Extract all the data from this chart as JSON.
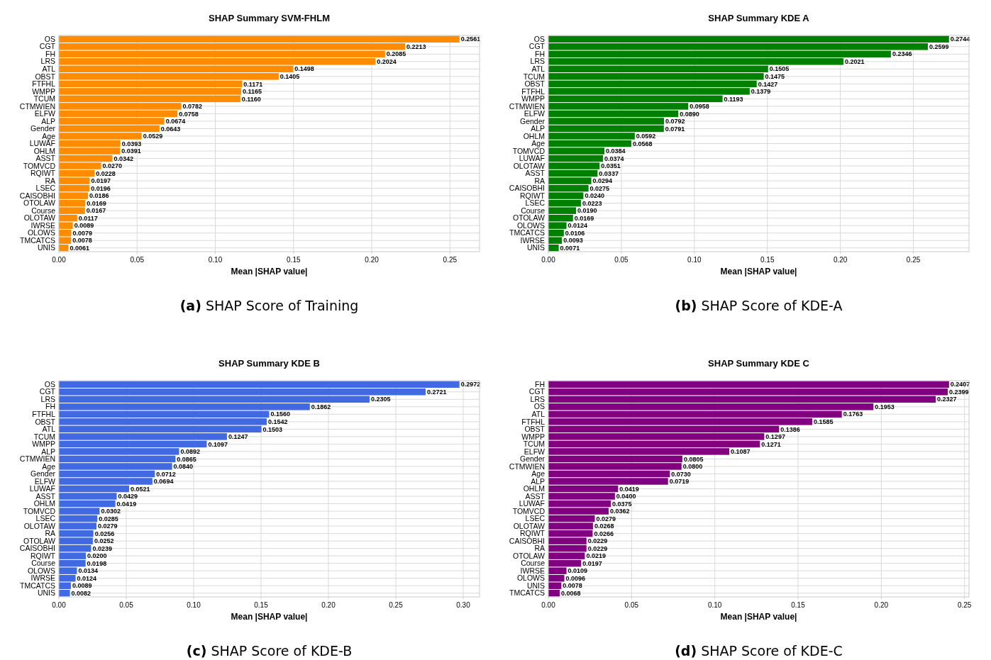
{
  "chart_data": [
    {
      "type": "bar",
      "orientation": "horizontal",
      "title": "SHAP Summary SVM-FHLM",
      "xlabel": "Mean |SHAP value|",
      "annotations": [
        "(a) SHAP Score of Training"
      ],
      "grid": true,
      "color": "#ff8c00",
      "categories": [
        "OS",
        "CGT",
        "FH",
        "LRS",
        "ATL",
        "OBST",
        "FTFHL",
        "WMPP",
        "TCUM",
        "CTMWIEN",
        "ELFW",
        "ALP",
        "Gender",
        "Age",
        "LUWAF",
        "OHLM",
        "ASST",
        "TOMVCD",
        "RQIWT",
        "RA",
        "LSEC",
        "CAISOBHI",
        "OTOLAW",
        "Course",
        "OLOTAW",
        "IWRSE",
        "OLOWS",
        "TMCATCS",
        "UNIS"
      ],
      "values": [
        0.2561,
        0.2213,
        0.2085,
        0.2024,
        0.1498,
        0.1405,
        0.1171,
        0.1165,
        0.116,
        0.0782,
        0.0758,
        0.0674,
        0.0643,
        0.0529,
        0.0393,
        0.0391,
        0.0342,
        0.027,
        0.0228,
        0.0197,
        0.0196,
        0.0186,
        0.0169,
        0.0167,
        0.0117,
        0.0089,
        0.0079,
        0.0078,
        0.0061
      ],
      "value_labels": [
        "0.2561",
        "0.2213",
        "0.2085",
        "0.2024",
        "0.1498",
        "0.1405",
        "0.1171",
        "0.1165",
        "0.1160",
        "0.0782",
        "0.0758",
        "0.0674",
        "0.0643",
        "0.0529",
        "0.0393",
        "0.0391",
        "0.0342",
        "0.0270",
        "0.0228",
        "0.0197",
        "0.0196",
        "0.0186",
        "0.0169",
        "0.0167",
        "0.0117",
        "0.0089",
        "0.0079",
        "0.0078",
        "0.0061"
      ],
      "xlim": [
        0,
        0.2689
      ],
      "xticks": [
        {
          "value": 0,
          "label": "0.00"
        },
        0.05,
        {
          "value": 0.1,
          "label": "0.10"
        },
        0.15,
        {
          "value": 0.2,
          "label": "0.20"
        },
        0.25
      ]
    },
    {
      "type": "bar",
      "orientation": "horizontal",
      "title": "SHAP Summary KDE A",
      "xlabel": "Mean |SHAP value|",
      "annotations": [
        "(b) SHAP Score of KDE-A"
      ],
      "grid": true,
      "color": "#008000",
      "categories": [
        "OS",
        "CGT",
        "FH",
        "LRS",
        "ATL",
        "TCUM",
        "OBST",
        "FTFHL",
        "WMPP",
        "CTMWIEN",
        "ELFW",
        "Gender",
        "ALP",
        "OHLM",
        "Age",
        "TOMVCD",
        "LUWAF",
        "OLOTAW",
        "ASST",
        "RA",
        "CAISOBHI",
        "RQIWT",
        "LSEC",
        "Course",
        "OTOLAW",
        "OLOWS",
        "TMCATCS",
        "IWRSE",
        "UNIS"
      ],
      "values": [
        0.2744,
        0.2599,
        0.2346,
        0.2021,
        0.1505,
        0.1475,
        0.1427,
        0.1379,
        0.1193,
        0.0958,
        0.089,
        0.0792,
        0.0791,
        0.0592,
        0.0568,
        0.0384,
        0.0374,
        0.0351,
        0.0337,
        0.0294,
        0.0275,
        0.024,
        0.0223,
        0.019,
        0.0169,
        0.0124,
        0.0106,
        0.0093,
        0.0071
      ],
      "value_labels": [
        "0.2744",
        "0.2599",
        "0.2346",
        "0.2021",
        "0.1505",
        "0.1475",
        "0.1427",
        "0.1379",
        "0.1193",
        "0.0958",
        "0.0890",
        "0.0792",
        "0.0791",
        "0.0592",
        "0.0568",
        "0.0384",
        "0.0374",
        "0.0351",
        "0.0337",
        "0.0294",
        "0.0275",
        "0.0240",
        "0.0223",
        "0.0190",
        "0.0169",
        "0.0124",
        "0.0106",
        "0.0093",
        "0.0071"
      ],
      "xlim": [
        0,
        0.2881
      ],
      "xticks": [
        {
          "value": 0,
          "label": "0.00"
        },
        0.05,
        {
          "value": 0.1,
          "label": "0.10"
        },
        0.15,
        {
          "value": 0.2,
          "label": "0.20"
        },
        0.25
      ]
    },
    {
      "type": "bar",
      "orientation": "horizontal",
      "title": "SHAP Summary KDE B",
      "xlabel": "Mean |SHAP value|",
      "annotations": [
        "(c) SHAP Score of KDE-B"
      ],
      "grid": true,
      "color": "#4169e1",
      "categories": [
        "OS",
        "CGT",
        "LRS",
        "FH",
        "FTFHL",
        "OBST",
        "ATL",
        "TCUM",
        "WMPP",
        "ALP",
        "CTMWIEN",
        "Age",
        "Gender",
        "ELFW",
        "LUWAF",
        "ASST",
        "OHLM",
        "TOMVCD",
        "LSEC",
        "OLOTAW",
        "RA",
        "OTOLAW",
        "CAISOBHI",
        "RQIWT",
        "Course",
        "OLOWS",
        "IWRSE",
        "TMCATCS",
        "UNIS"
      ],
      "values": [
        0.2972,
        0.2721,
        0.2305,
        0.1862,
        0.156,
        0.1542,
        0.1503,
        0.1247,
        0.1097,
        0.0892,
        0.0865,
        0.084,
        0.0712,
        0.0694,
        0.0521,
        0.0429,
        0.0419,
        0.0302,
        0.0285,
        0.0279,
        0.0256,
        0.0252,
        0.0239,
        0.02,
        0.0198,
        0.0134,
        0.0124,
        0.0089,
        0.0082
      ],
      "value_labels": [
        "0.2972",
        "0.2721",
        "0.2305",
        "0.1862",
        "0.1560",
        "0.1542",
        "0.1503",
        "0.1247",
        "0.1097",
        "0.0892",
        "0.0865",
        "0.0840",
        "0.0712",
        "0.0694",
        "0.0521",
        "0.0429",
        "0.0419",
        "0.0302",
        "0.0285",
        "0.0279",
        "0.0256",
        "0.0252",
        "0.0239",
        "0.0200",
        "0.0198",
        "0.0134",
        "0.0124",
        "0.0089",
        "0.0082"
      ],
      "xlim": [
        0,
        0.3121
      ],
      "xticks": [
        {
          "value": 0,
          "label": "0.00"
        },
        0.05,
        {
          "value": 0.1,
          "label": "0.10"
        },
        0.15,
        {
          "value": 0.2,
          "label": "0.20"
        },
        0.25,
        {
          "value": 0.3,
          "label": "0.30"
        }
      ]
    },
    {
      "type": "bar",
      "orientation": "horizontal",
      "title": "SHAP Summary KDE C",
      "xlabel": "Mean |SHAP value|",
      "annotations": [
        "(d) SHAP Score of KDE-C"
      ],
      "grid": true,
      "color": "#800080",
      "categories": [
        "FH",
        "CGT",
        "LRS",
        "OS",
        "ATL",
        "FTFHL",
        "OBST",
        "WMPP",
        "TCUM",
        "ELFW",
        "Gender",
        "CTMWIEN",
        "Age",
        "ALP",
        "OHLM",
        "ASST",
        "LUWAF",
        "TOMVCD",
        "LSEC",
        "OLOTAW",
        "RQIWT",
        "CAISOBHI",
        "RA",
        "OTOLAW",
        "Course",
        "IWRSE",
        "OLOWS",
        "UNIS",
        "TMCATCS"
      ],
      "values": [
        0.2407,
        0.2399,
        0.2327,
        0.1953,
        0.1763,
        0.1585,
        0.1386,
        0.1297,
        0.1271,
        0.1087,
        0.0805,
        0.08,
        0.073,
        0.0719,
        0.0419,
        0.04,
        0.0375,
        0.0362,
        0.0279,
        0.0268,
        0.0266,
        0.0229,
        0.0229,
        0.0219,
        0.0197,
        0.0109,
        0.0096,
        0.0078,
        0.0068
      ],
      "value_labels": [
        "0.2407",
        "0.2399",
        "0.2327",
        "0.1953",
        "0.1763",
        "0.1585",
        "0.1386",
        "0.1297",
        "0.1271",
        "0.1087",
        "0.0805",
        "0.0800",
        "0.0730",
        "0.0719",
        "0.0419",
        "0.0400",
        "0.0375",
        "0.0362",
        "0.0279",
        "0.0268",
        "0.0266",
        "0.0229",
        "0.0229",
        "0.0219",
        "0.0197",
        "0.0109",
        "0.0096",
        "0.0078",
        "0.0068"
      ],
      "xlim": [
        0,
        0.2527
      ],
      "xticks": [
        {
          "value": 0,
          "label": "0.00"
        },
        0.05,
        {
          "value": 0.1,
          "label": "0.10"
        },
        0.15,
        {
          "value": 0.2,
          "label": "0.20"
        },
        0.25
      ]
    }
  ]
}
